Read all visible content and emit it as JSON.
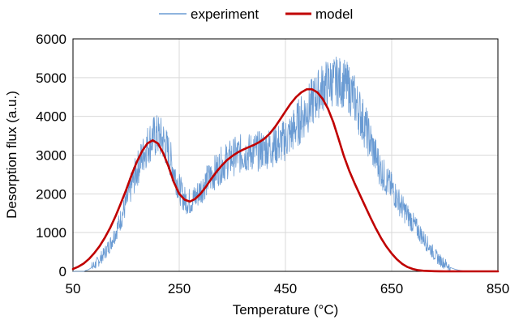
{
  "chart_data": {
    "type": "line",
    "xlabel": "Temperature (°C)",
    "ylabel": "Desorption flux (a.u.)",
    "xlim": [
      50,
      850
    ],
    "ylim": [
      0,
      6000
    ],
    "xticks": [
      50,
      250,
      450,
      650,
      850
    ],
    "yticks": [
      0,
      1000,
      2000,
      3000,
      4000,
      5000,
      6000
    ],
    "grid": "both",
    "legend_position": "top-center",
    "series": [
      {
        "name": "experiment",
        "color": "#6a9bd3",
        "style": "noisy-line",
        "x": [
          50,
          60,
          70,
          80,
          90,
          100,
          110,
          120,
          130,
          140,
          150,
          160,
          170,
          180,
          190,
          200,
          210,
          220,
          230,
          240,
          250,
          260,
          270,
          280,
          290,
          300,
          310,
          320,
          330,
          340,
          350,
          360,
          370,
          380,
          390,
          400,
          410,
          420,
          430,
          440,
          450,
          460,
          470,
          480,
          490,
          500,
          510,
          520,
          530,
          540,
          550,
          560,
          570,
          580,
          590,
          600,
          610,
          620,
          630,
          640,
          650,
          660,
          670,
          680,
          690,
          700,
          710,
          720,
          730,
          740,
          750,
          760,
          770,
          780,
          790
        ],
        "y": [
          0,
          0,
          0,
          50,
          150,
          300,
          480,
          700,
          1000,
          1350,
          1750,
          2200,
          2600,
          2950,
          3250,
          3450,
          3500,
          3380,
          3050,
          2600,
          2150,
          1850,
          1800,
          1900,
          2100,
          2300,
          2450,
          2600,
          2750,
          2850,
          2950,
          3000,
          3050,
          3050,
          3100,
          3100,
          3150,
          3200,
          3250,
          3300,
          3400,
          3550,
          3750,
          3950,
          4150,
          4350,
          4550,
          4750,
          4850,
          4900,
          4900,
          4850,
          4700,
          4450,
          4100,
          3750,
          3350,
          2950,
          2600,
          2350,
          2150,
          1900,
          1650,
          1450,
          1250,
          1050,
          850,
          650,
          450,
          300,
          200,
          100,
          50,
          20,
          0
        ]
      },
      {
        "name": "model",
        "color": "#c00000",
        "style": "smooth-line",
        "x": [
          50,
          60,
          70,
          80,
          90,
          100,
          110,
          120,
          130,
          140,
          150,
          160,
          170,
          180,
          190,
          200,
          210,
          220,
          230,
          240,
          250,
          260,
          270,
          280,
          290,
          300,
          310,
          320,
          330,
          340,
          350,
          360,
          370,
          380,
          390,
          400,
          410,
          420,
          430,
          440,
          450,
          460,
          470,
          480,
          490,
          500,
          510,
          520,
          530,
          540,
          550,
          560,
          570,
          580,
          590,
          600,
          610,
          620,
          630,
          640,
          650,
          660,
          670,
          680,
          690,
          700,
          710,
          720,
          730,
          740,
          750,
          760,
          770,
          780,
          790,
          800,
          810,
          820,
          830,
          840,
          850
        ],
        "y": [
          60,
          120,
          200,
          320,
          470,
          650,
          870,
          1120,
          1420,
          1750,
          2100,
          2480,
          2820,
          3100,
          3300,
          3380,
          3300,
          3050,
          2700,
          2300,
          2000,
          1850,
          1800,
          1870,
          2000,
          2180,
          2380,
          2570,
          2730,
          2870,
          2980,
          3070,
          3140,
          3200,
          3260,
          3330,
          3420,
          3550,
          3720,
          3920,
          4130,
          4330,
          4500,
          4620,
          4700,
          4700,
          4620,
          4450,
          4200,
          3850,
          3420,
          2980,
          2600,
          2280,
          1980,
          1680,
          1390,
          1110,
          860,
          640,
          460,
          310,
          190,
          110,
          60,
          30,
          15,
          8,
          4,
          2,
          1,
          0,
          0,
          0,
          0,
          0,
          0,
          0,
          0,
          0,
          0
        ]
      }
    ]
  }
}
